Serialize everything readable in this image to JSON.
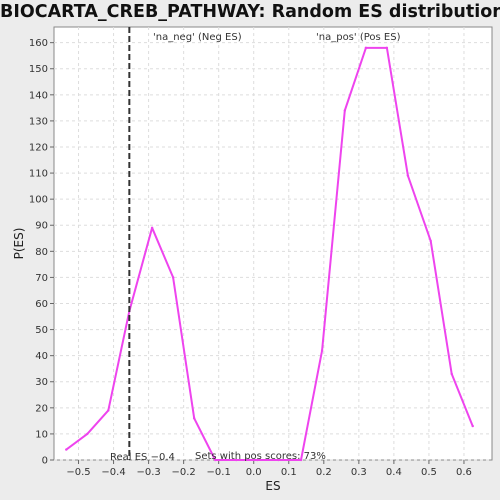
{
  "chart_data": {
    "type": "line",
    "title": "BIOCARTA_CREB_PATHWAY: Random ES distribution",
    "xlabel": "ES",
    "ylabel": "P(ES)",
    "xlim": [
      -0.57,
      0.68
    ],
    "ylim": [
      0,
      166
    ],
    "xticks": [
      -0.5,
      -0.4,
      -0.3,
      -0.2,
      -0.1,
      0.0,
      0.1,
      0.2,
      0.3,
      0.4,
      0.5,
      0.6
    ],
    "xtick_labels": [
      "−0.5",
      "−0.4",
      "−0.3",
      "−0.2",
      "−0.1",
      "0.0",
      "0.1",
      "0.2",
      "0.3",
      "0.4",
      "0.5",
      "0.6"
    ],
    "yticks": [
      0,
      10,
      20,
      30,
      40,
      50,
      60,
      70,
      80,
      90,
      100,
      110,
      120,
      130,
      140,
      150,
      160
    ],
    "grid": true,
    "series": [
      {
        "color": "#ee44ee",
        "x": [
          -0.535,
          -0.475,
          -0.415,
          -0.355,
          -0.29,
          -0.23,
          -0.17,
          -0.11,
          -0.05,
          0.01,
          0.07,
          0.135,
          0.195,
          0.26,
          0.32,
          0.38,
          0.44,
          0.505,
          0.565,
          0.625
        ],
        "y": [
          4,
          10,
          19,
          57,
          89,
          70,
          16,
          0,
          0,
          0,
          0,
          0,
          42,
          134,
          158,
          158,
          109,
          84,
          33,
          13
        ]
      }
    ],
    "real_es": {
      "x": -0.355,
      "label": "Real ES −0.4"
    },
    "neg_label": {
      "text": "'na_neg' (Neg ES)",
      "color": "#4444dd"
    },
    "pos_label": {
      "text": "'na_pos' (Pos ES)",
      "color": "#ee4444"
    },
    "pos_scores_text": "Sets with pos scores: 73%"
  }
}
